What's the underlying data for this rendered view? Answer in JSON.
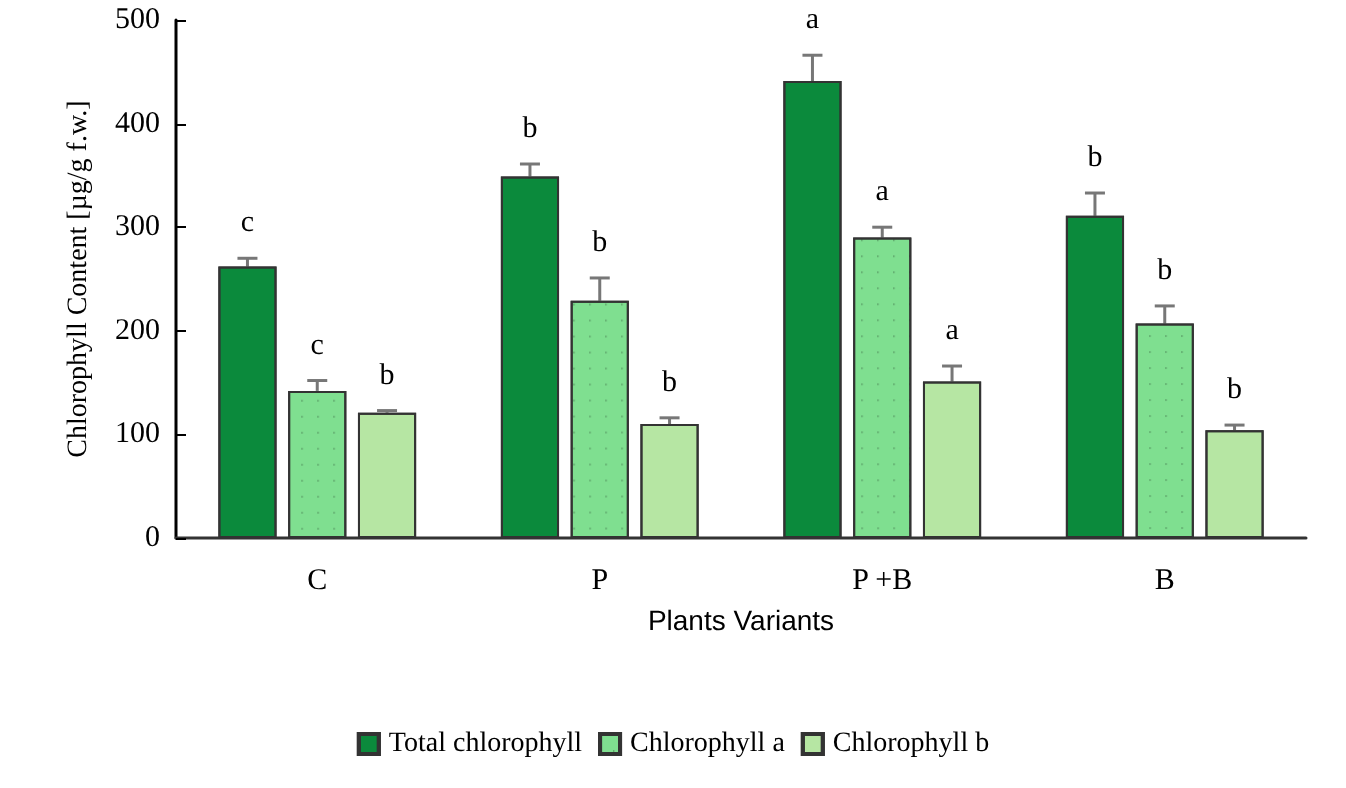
{
  "chart_data": {
    "type": "bar",
    "xlabel": "Plants Variants",
    "ylabel": "Chlorophyll Content [µg/g f.w.]",
    "categories": [
      "C",
      "P",
      "P +B",
      "B"
    ],
    "series": [
      {
        "name": "Total chlorophyll",
        "color": "#0b8a3c",
        "values": [
          262,
          349,
          441,
          311
        ],
        "errors": [
          8,
          12,
          25,
          22
        ],
        "value_labels": [
          "c",
          "b",
          "a",
          "b"
        ]
      },
      {
        "name": "Chlorophyll a",
        "color": "#7fdf90",
        "values": [
          142,
          229,
          290,
          207
        ],
        "errors": [
          10,
          22,
          10,
          17
        ],
        "value_labels": [
          "c",
          "b",
          "a",
          "b"
        ]
      },
      {
        "name": "Chlorophyll b",
        "color": "#b6e6a3",
        "values": [
          121,
          110,
          151,
          104
        ],
        "errors": [
          2,
          6,
          15,
          5
        ],
        "value_labels": [
          "b",
          "b",
          "a",
          "b"
        ]
      }
    ],
    "ylim": [
      0,
      500
    ],
    "yticks": [
      0,
      100,
      200,
      300,
      400,
      500
    ],
    "grid": false,
    "legend": "bottom"
  }
}
